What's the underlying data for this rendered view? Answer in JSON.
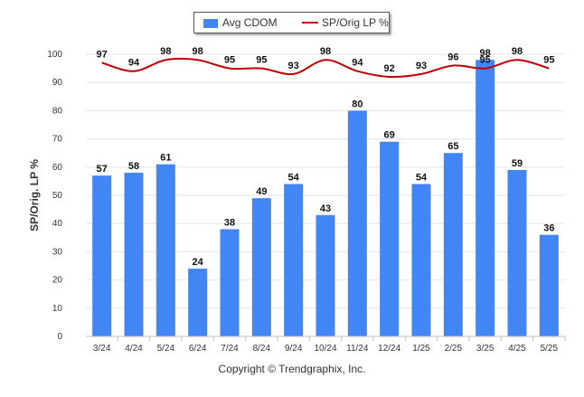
{
  "chart_data": {
    "type": "bar",
    "categories": [
      "3/24",
      "4/24",
      "5/24",
      "6/24",
      "7/24",
      "8/24",
      "9/24",
      "10/24",
      "11/24",
      "12/24",
      "1/25",
      "2/25",
      "3/25",
      "4/25",
      "5/25"
    ],
    "series": [
      {
        "name": "Avg CDOM",
        "type": "bar",
        "color": "#4285f4",
        "values": [
          57,
          58,
          61,
          24,
          38,
          49,
          54,
          43,
          80,
          69,
          54,
          65,
          98,
          59,
          36
        ]
      },
      {
        "name": "SP/Orig LP %",
        "type": "line",
        "color": "#c00000",
        "values": [
          97,
          94,
          98,
          98,
          95,
          95,
          93,
          98,
          94,
          92,
          93,
          96,
          95,
          98,
          95
        ]
      }
    ],
    "ylabel": "SP/Orig. LP %",
    "xlabel": "",
    "ylim": [
      0,
      100
    ],
    "yticks": [
      0,
      10,
      20,
      30,
      40,
      50,
      60,
      70,
      80,
      90,
      100
    ],
    "grid": true,
    "legend_position": "top"
  },
  "footer": {
    "copyright": "Copyright © Trendgraphix, Inc."
  }
}
